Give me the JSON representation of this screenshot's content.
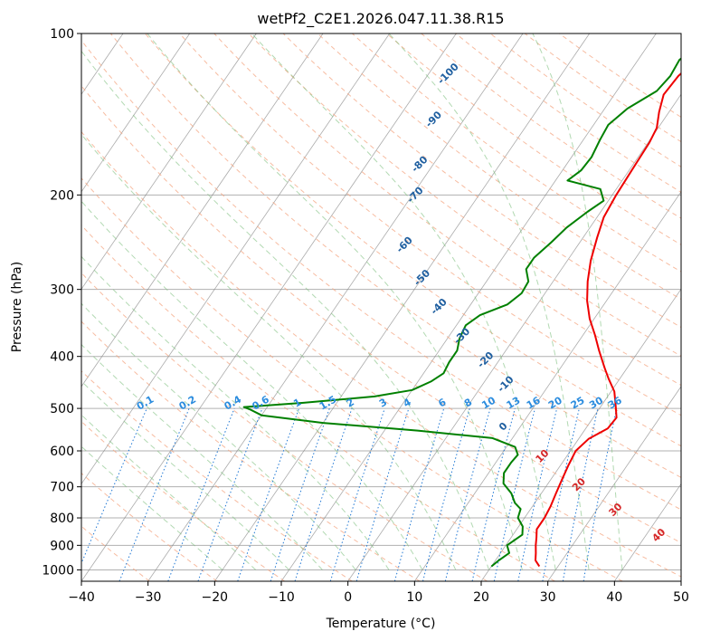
{
  "chart_data": {
    "type": "line",
    "title": "wetPf2_C2E1.2026.047.11.38.R15",
    "xlabel": "Temperature (°C)",
    "ylabel": "Pressure (hPa)",
    "xlim": [
      -40,
      50
    ],
    "ylim": [
      1050,
      100
    ],
    "y_scale": "log",
    "grid": true,
    "x_ticks": [
      "−40",
      "−30",
      "−20",
      "−10",
      "0",
      "10",
      "20",
      "30",
      "40",
      "50"
    ],
    "x_tick_values": [
      -40,
      -30,
      -20,
      -10,
      0,
      10,
      20,
      30,
      40,
      50
    ],
    "y_ticks": [
      "100",
      "200",
      "300",
      "400",
      "500",
      "600",
      "700",
      "800",
      "900",
      "1000"
    ],
    "y_tick_values": [
      100,
      200,
      300,
      400,
      500,
      600,
      700,
      800,
      900,
      1000
    ],
    "colors": {
      "temperature": "#ee0000",
      "dewpoint": "#008000",
      "dry_adiabat": "#f4a582",
      "moist_adiabat": "#7fbf7f",
      "mixing_ratio": "#1f77d4",
      "isotherm": "#888888",
      "theta_e_label": "#1f5fa0",
      "cape_label": "#d62728"
    },
    "series": [
      {
        "values_key": "temperature",
        "points": [
          [
            27.2,
            985
          ],
          [
            26.0,
            960
          ],
          [
            25.3,
            930
          ],
          [
            24.5,
            900
          ],
          [
            23.8,
            870
          ],
          [
            23.0,
            840
          ],
          [
            23.0,
            800
          ],
          [
            22.7,
            760
          ],
          [
            22.2,
            720
          ],
          [
            21.7,
            680
          ],
          [
            21.2,
            640
          ],
          [
            20.8,
            600
          ],
          [
            21.5,
            570
          ],
          [
            23.3,
            545
          ],
          [
            23.5,
            520
          ],
          [
            22.2,
            495
          ],
          [
            20.5,
            465
          ],
          [
            18.3,
            440
          ],
          [
            16.6,
            420
          ],
          [
            14.0,
            390
          ],
          [
            11.8,
            365
          ],
          [
            9.3,
            340
          ],
          [
            7.1,
            315
          ],
          [
            5.2,
            290
          ],
          [
            3.5,
            265
          ],
          [
            2.1,
            240
          ],
          [
            1.0,
            220
          ],
          [
            0.6,
            200
          ],
          [
            0.4,
            180
          ],
          [
            0.2,
            160
          ],
          [
            -0.2,
            150
          ],
          [
            -1.5,
            140
          ],
          [
            -2.6,
            130
          ],
          [
            -2.3,
            120
          ],
          [
            -1.3,
            112
          ],
          [
            1.0,
            105
          ],
          [
            3.5,
            100
          ]
        ]
      },
      {
        "values_key": "dewpoint",
        "points": [
          [
            20.0,
            985
          ],
          [
            20.5,
            960
          ],
          [
            21.3,
            930
          ],
          [
            20.2,
            900
          ],
          [
            21.4,
            860
          ],
          [
            20.6,
            830
          ],
          [
            19.0,
            800
          ],
          [
            18.5,
            770
          ],
          [
            17.0,
            750
          ],
          [
            15.5,
            720
          ],
          [
            13.3,
            690
          ],
          [
            12.3,
            660
          ],
          [
            12.3,
            630
          ],
          [
            12.5,
            610
          ],
          [
            11.3,
            590
          ],
          [
            7.0,
            568
          ],
          [
            -5.0,
            550
          ],
          [
            -20.0,
            532
          ],
          [
            -30.0,
            515
          ],
          [
            -32.2,
            503
          ],
          [
            -33.5,
            497
          ],
          [
            -25.0,
            488
          ],
          [
            -15.0,
            475
          ],
          [
            -10.0,
            462
          ],
          [
            -8.0,
            445
          ],
          [
            -7.0,
            430
          ],
          [
            -7.3,
            410
          ],
          [
            -7.3,
            390
          ],
          [
            -8.2,
            370
          ],
          [
            -8.6,
            350
          ],
          [
            -7.5,
            335
          ],
          [
            -4.5,
            320
          ],
          [
            -3.5,
            305
          ],
          [
            -3.7,
            290
          ],
          [
            -5.3,
            275
          ],
          [
            -5.3,
            262
          ],
          [
            -4.3,
            245
          ],
          [
            -3.5,
            230
          ],
          [
            -2.0,
            215
          ],
          [
            -0.7,
            205
          ],
          [
            -2.4,
            195
          ],
          [
            -8.2,
            188
          ],
          [
            -7.2,
            180
          ],
          [
            -7.0,
            170
          ],
          [
            -7.5,
            158
          ],
          [
            -7.8,
            148
          ],
          [
            -6.6,
            138
          ],
          [
            -4.0,
            128
          ],
          [
            -3.5,
            120
          ],
          [
            -3.8,
            112
          ],
          [
            -2.5,
            105
          ],
          [
            -2.0,
            100
          ]
        ]
      }
    ],
    "theta_e_labels": [
      {
        "text": "-100",
        "x": -36.5,
        "y": 120
      },
      {
        "text": "-90",
        "x": -34.0,
        "y": 146
      },
      {
        "text": "-80",
        "x": -31.5,
        "y": 177
      },
      {
        "text": "-70",
        "x": -29.0,
        "y": 202
      },
      {
        "text": "-60",
        "x": -25.5,
        "y": 250
      },
      {
        "text": "-50",
        "x": -19.5,
        "y": 288
      },
      {
        "text": "-40",
        "x": -14.0,
        "y": 326
      },
      {
        "text": "-30",
        "x": -7.5,
        "y": 370
      },
      {
        "text": "-20",
        "x": -1.5,
        "y": 410
      },
      {
        "text": "-10",
        "x": 4.0,
        "y": 455
      },
      {
        "text": "0",
        "x": 8.0,
        "y": 546
      }
    ],
    "mixing_ratio_labels": [
      "0.1",
      "0.2",
      "0.4",
      "0.6",
      "1",
      "1.5",
      "2",
      "3",
      "4",
      "6",
      "8",
      "10",
      "13",
      "16",
      "20",
      "25",
      "30",
      "36"
    ],
    "mixing_ratio_values": [
      0.1,
      0.2,
      0.4,
      0.6,
      1,
      1.5,
      2,
      3,
      4,
      6,
      8,
      10,
      13,
      16,
      20,
      25,
      30,
      36
    ],
    "cape_labels": [
      {
        "text": "10",
        "x": 29.5,
        "y": 620
      },
      {
        "text": "20",
        "x": 35.0,
        "y": 700
      },
      {
        "text": "30",
        "x": 40.5,
        "y": 780
      },
      {
        "text": "40",
        "x": 47.0,
        "y": 870
      }
    ]
  }
}
